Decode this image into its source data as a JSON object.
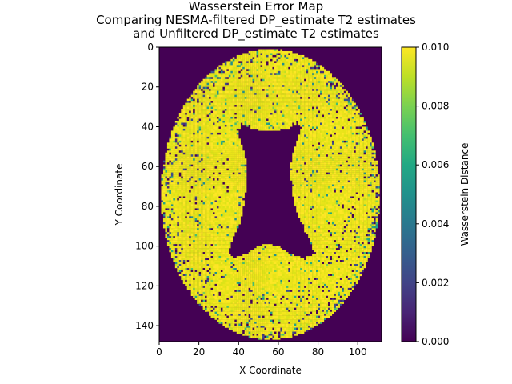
{
  "chart_data": {
    "type": "heatmap",
    "title_lines": [
      "Wasserstein Error Map",
      "Comparing NESMA-filtered DP_estimate T2 estimates",
      "and Unfiltered DP_estimate T2 estimates"
    ],
    "xlabel": "X Coordinate",
    "ylabel": "Y Coordinate",
    "xlim": [
      0,
      112
    ],
    "ylim": [
      148,
      0
    ],
    "xticks": [
      0,
      20,
      40,
      60,
      80,
      100
    ],
    "yticks": [
      0,
      20,
      40,
      60,
      80,
      100,
      120,
      140
    ],
    "grid": false,
    "colorbar": {
      "label": "Wasserstein Distance",
      "colormap": "viridis",
      "range": [
        0.0,
        0.01
      ],
      "ticks": [
        "0.000",
        "0.002",
        "0.004",
        "0.006",
        "0.008",
        "0.010"
      ]
    },
    "background_value": 0.0,
    "brain_typical_value": 0.01,
    "brain_outline": {
      "center": [
        56,
        74
      ],
      "semi_axes": [
        55,
        73
      ]
    },
    "ventricle_outline": [
      [
        41,
        38
      ],
      [
        47,
        41
      ],
      [
        53,
        42
      ],
      [
        59,
        42
      ],
      [
        65,
        41
      ],
      [
        70,
        38
      ],
      [
        72,
        40
      ],
      [
        70,
        46
      ],
      [
        67,
        54
      ],
      [
        66,
        62
      ],
      [
        67,
        72
      ],
      [
        69,
        82
      ],
      [
        72,
        90
      ],
      [
        76,
        97
      ],
      [
        78,
        104
      ],
      [
        73,
        106
      ],
      [
        66,
        104
      ],
      [
        60,
        100
      ],
      [
        55,
        99
      ],
      [
        50,
        100
      ],
      [
        44,
        104
      ],
      [
        37,
        106
      ],
      [
        35,
        103
      ],
      [
        37,
        96
      ],
      [
        41,
        88
      ],
      [
        43,
        78
      ],
      [
        44,
        68
      ],
      [
        44,
        58
      ],
      [
        42,
        50
      ],
      [
        40,
        44
      ]
    ]
  }
}
